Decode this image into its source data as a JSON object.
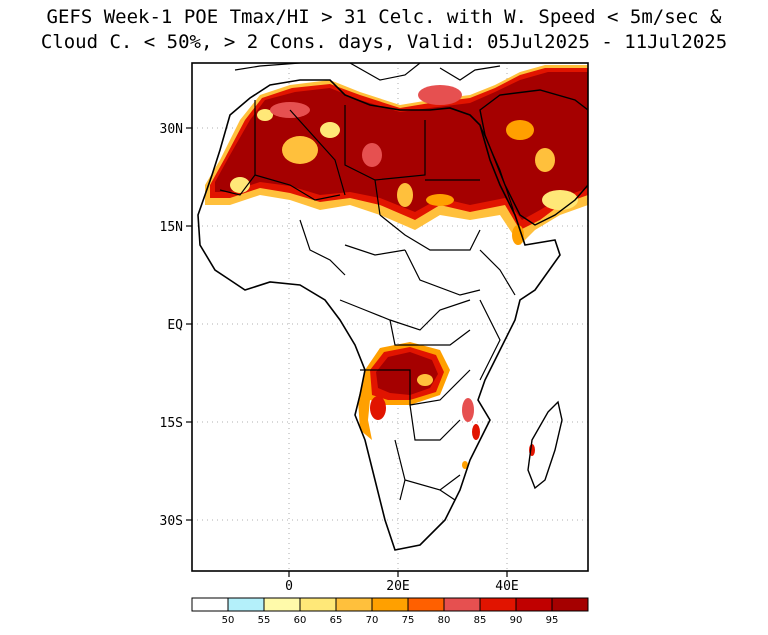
{
  "title": {
    "line1": "GEFS Week-1 POE Tmax/HI > 31 Celc. with W. Speed < 5m/sec &",
    "line2": "Cloud C. < 50%, > 2 Cons. days, Valid: 05Jul2025 - 11Jul2025"
  },
  "axes": {
    "lat_labels": [
      "30N",
      "15N",
      "EQ",
      "15S",
      "30S"
    ],
    "lon_labels": [
      "0",
      "20E",
      "40E"
    ]
  },
  "colorbar": {
    "labels": [
      "50",
      "55",
      "60",
      "65",
      "70",
      "75",
      "80",
      "85",
      "90",
      "95"
    ],
    "colors": [
      "#ffffff",
      "#b4f0fa",
      "#fffaaa",
      "#ffe878",
      "#ffc03c",
      "#ffa000",
      "#ff6000",
      "#e65050",
      "#e11400",
      "#c00000",
      "#a50000"
    ]
  }
}
